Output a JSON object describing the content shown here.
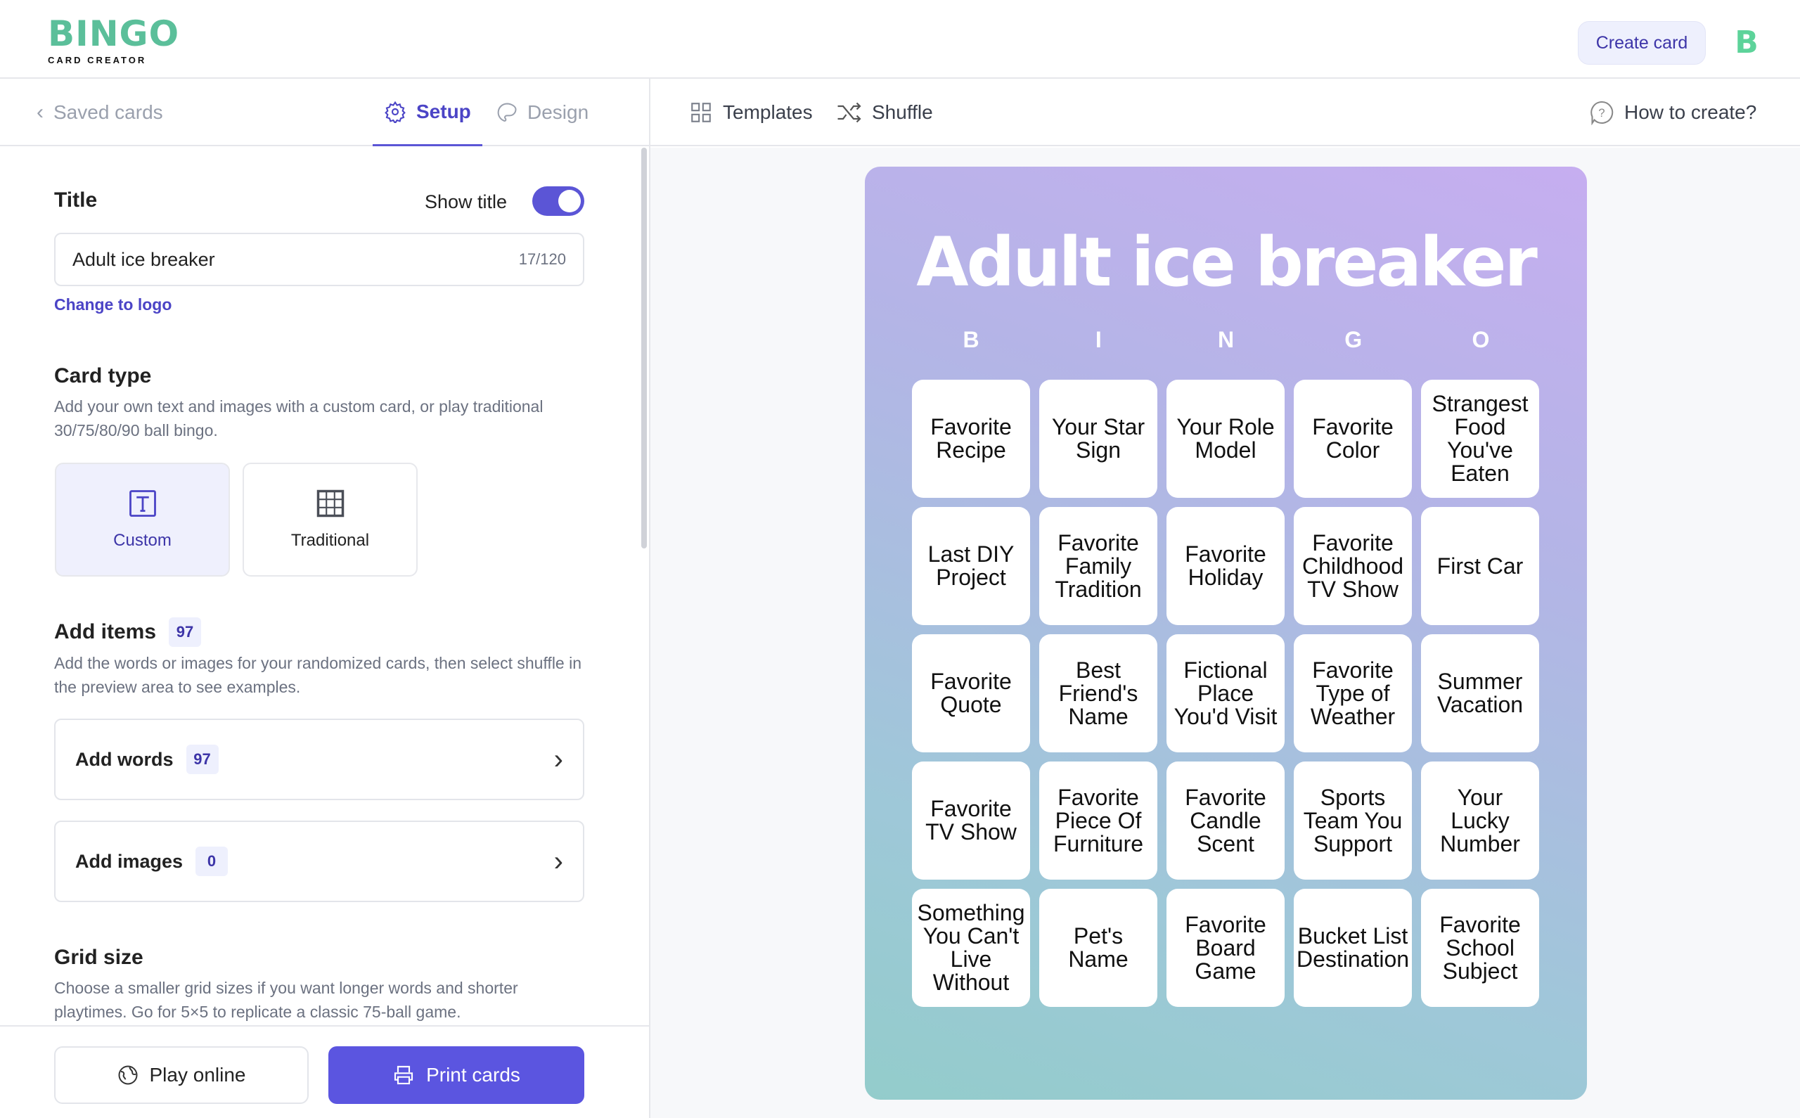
{
  "header": {
    "logo_text": "BINGO",
    "logo_sub": "CARD CREATOR",
    "create_label": "Create card",
    "avatar": "B"
  },
  "nav": {
    "back": "Saved cards",
    "tabs": [
      {
        "label": "Setup",
        "icon": "gear-icon"
      },
      {
        "label": "Design",
        "icon": "palette-icon"
      }
    ],
    "templates": "Templates",
    "shuffle": "Shuffle",
    "help": "How to create?"
  },
  "setup": {
    "title_label": "Title",
    "show_title_label": "Show title",
    "show_title": true,
    "title_value": "Adult ice breaker",
    "title_count": "17/120",
    "change_logo": "Change to logo",
    "card_type_label": "Card type",
    "card_type_desc": "Add your own text and images with a custom card, or play traditional 30/75/80/90 ball bingo.",
    "card_types": [
      {
        "label": "Custom",
        "selected": true
      },
      {
        "label": "Traditional",
        "selected": false
      }
    ],
    "add_items_label": "Add items",
    "add_items_count": "97",
    "add_items_desc": "Add the words or images for your randomized cards, then select shuffle in the preview area to see examples.",
    "add_words": "Add words",
    "add_words_count": "97",
    "add_images": "Add images",
    "add_images_count": "0",
    "grid_size_label": "Grid size",
    "grid_size_desc": "Choose a smaller grid sizes if you want longer words and shorter playtimes. Go for 5×5 to replicate a classic 75-ball game."
  },
  "actions": {
    "play_online": "Play online",
    "print_cards": "Print cards"
  },
  "colors": {
    "accent": "#5b55d6",
    "brand": "#5bbf9a"
  },
  "card": {
    "title": "Adult ice breaker",
    "letters": [
      "B",
      "I",
      "N",
      "G",
      "O"
    ],
    "cells": [
      "Favorite Recipe",
      "Your Star Sign",
      "Your Role Model",
      "Favorite Color",
      "Strangest Food You've Eaten",
      "Last DIY Project",
      "Favorite Family Tradition",
      "Favorite Holiday",
      "Favorite Childhood TV Show",
      "First Car",
      "Favorite Quote",
      "Best Friend's Name",
      "Fictional Place You'd Visit",
      "Favorite Type of Weather",
      "Summer Vacation",
      "Favorite TV Show",
      "Favorite Piece Of Furniture",
      "Favorite Candle Scent",
      "Sports Team You Support",
      "Your Lucky Number",
      "Something You Can't Live Without",
      "Pet's Name",
      "Favorite Board Game",
      "Bucket List Destination",
      "Favorite School Subject"
    ]
  }
}
